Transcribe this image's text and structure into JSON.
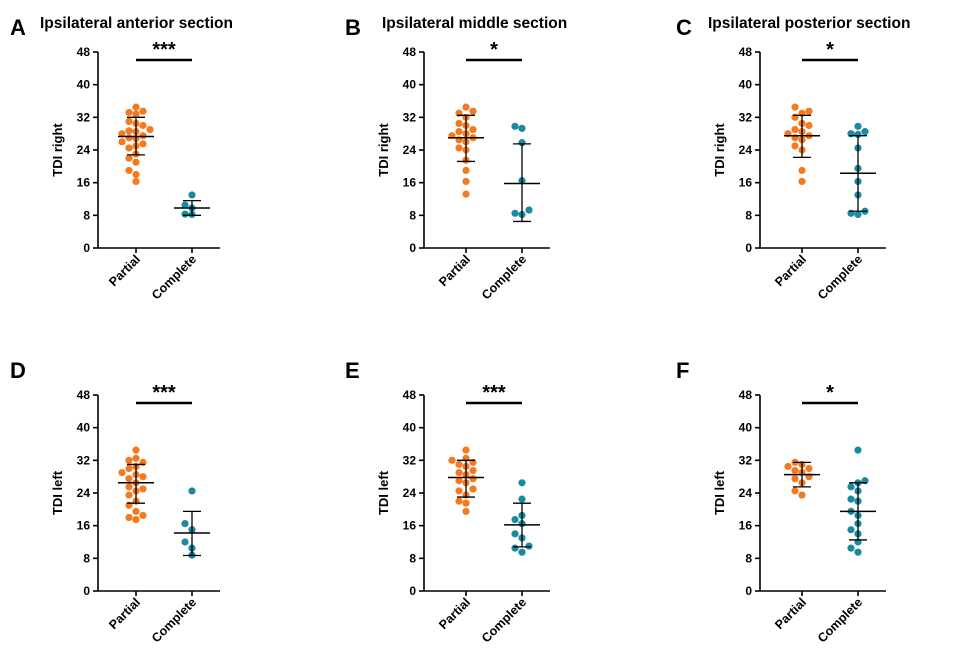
{
  "colors": {
    "partial": "#F47A1F",
    "complete": "#1B8A9E",
    "axis": "#000000"
  },
  "chart_data": [
    {
      "type": "scatter",
      "letter": "A",
      "title": "Ipsilateral anterior section",
      "ylabel": "TDI right",
      "categories": [
        "Partial",
        "Complete"
      ],
      "ylim": [
        0,
        48
      ],
      "yticks": [
        0,
        8,
        16,
        24,
        32,
        40,
        48
      ],
      "significance": "***",
      "series": [
        {
          "category": "Partial",
          "mean": 27.3,
          "sd_low": 22.8,
          "sd_high": 32.0,
          "values": [
            34.5,
            33.5,
            33.2,
            32.8,
            31.0,
            30.5,
            30.0,
            29.0,
            28.7,
            28.5,
            28.0,
            27.5,
            27.0,
            26.8,
            26.0,
            25.5,
            25.0,
            24.5,
            23.0,
            22.0,
            21.0,
            19.0,
            18.0,
            16.3
          ]
        },
        {
          "category": "Complete",
          "mean": 9.8,
          "sd_low": 8.0,
          "sd_high": 11.6,
          "values": [
            13.0,
            10.5,
            9.8,
            8.3,
            8.2
          ]
        }
      ]
    },
    {
      "type": "scatter",
      "letter": "B",
      "title": "Ipsilateral middle section",
      "ylabel": "TDI right",
      "categories": [
        "Partial",
        "Complete"
      ],
      "ylim": [
        0,
        48
      ],
      "yticks": [
        0,
        8,
        16,
        24,
        32,
        40,
        48
      ],
      "significance": "*",
      "series": [
        {
          "category": "Partial",
          "mean": 27.0,
          "sd_low": 21.2,
          "sd_high": 32.5,
          "values": [
            34.5,
            33.5,
            33.0,
            32.0,
            30.5,
            30.0,
            29.0,
            28.5,
            28.0,
            27.5,
            27.0,
            26.5,
            26.0,
            24.5,
            24.0,
            21.5,
            19.0,
            16.3,
            13.2
          ]
        },
        {
          "category": "Complete",
          "mean": 15.8,
          "sd_low": 6.5,
          "sd_high": 25.5,
          "values": [
            29.8,
            29.3,
            25.8,
            16.5,
            9.3,
            8.5,
            8.2
          ]
        }
      ]
    },
    {
      "type": "scatter",
      "letter": "C",
      "title": "Ipsilateral posterior section",
      "ylabel": "TDI right",
      "categories": [
        "Partial",
        "Complete"
      ],
      "ylim": [
        0,
        48
      ],
      "yticks": [
        0,
        8,
        16,
        24,
        32,
        40,
        48
      ],
      "significance": "*",
      "series": [
        {
          "category": "Partial",
          "mean": 27.5,
          "sd_low": 22.2,
          "sd_high": 32.5,
          "values": [
            34.5,
            33.5,
            33.0,
            32.0,
            30.5,
            30.0,
            29.0,
            28.5,
            28.0,
            27.5,
            27.0,
            26.5,
            25.0,
            24.0,
            19.0,
            16.3
          ]
        },
        {
          "category": "Complete",
          "mean": 18.3,
          "sd_low": 9.0,
          "sd_high": 27.5,
          "values": [
            29.8,
            28.5,
            28.0,
            27.8,
            24.5,
            19.5,
            16.3,
            13.0,
            9.0,
            8.5,
            8.2
          ]
        }
      ]
    },
    {
      "type": "scatter",
      "letter": "D",
      "title": "",
      "ylabel": "TDI left",
      "categories": [
        "Partial",
        "Complete"
      ],
      "ylim": [
        0,
        48
      ],
      "yticks": [
        0,
        8,
        16,
        24,
        32,
        40,
        48
      ],
      "significance": "***",
      "series": [
        {
          "category": "Partial",
          "mean": 26.5,
          "sd_low": 21.5,
          "sd_high": 31.0,
          "values": [
            34.5,
            32.5,
            32.0,
            31.5,
            30.5,
            30.0,
            29.0,
            28.5,
            28.0,
            27.5,
            26.5,
            25.5,
            25.0,
            24.5,
            23.5,
            22.0,
            21.0,
            19.5,
            18.5,
            18.0,
            17.5
          ]
        },
        {
          "category": "Complete",
          "mean": 14.2,
          "sd_low": 8.7,
          "sd_high": 19.5,
          "values": [
            24.5,
            16.5,
            15.0,
            12.0,
            10.5,
            8.8
          ]
        }
      ]
    },
    {
      "type": "scatter",
      "letter": "E",
      "title": "",
      "ylabel": "TDI left",
      "categories": [
        "Partial",
        "Complete"
      ],
      "ylim": [
        0,
        48
      ],
      "yticks": [
        0,
        8,
        16,
        24,
        32,
        40,
        48
      ],
      "significance": "***",
      "series": [
        {
          "category": "Partial",
          "mean": 27.8,
          "sd_low": 23.0,
          "sd_high": 32.0,
          "values": [
            34.5,
            32.5,
            32.0,
            31.5,
            31.0,
            30.5,
            29.5,
            29.0,
            28.5,
            27.5,
            27.0,
            26.5,
            25.0,
            24.5,
            23.5,
            22.0,
            21.5,
            19.5
          ]
        },
        {
          "category": "Complete",
          "mean": 16.2,
          "sd_low": 10.8,
          "sd_high": 21.5,
          "values": [
            26.5,
            22.5,
            18.5,
            17.5,
            16.5,
            14.0,
            13.0,
            11.0,
            10.5,
            9.5
          ]
        }
      ]
    },
    {
      "type": "scatter",
      "letter": "F",
      "title": "",
      "ylabel": "TDI left",
      "categories": [
        "Partial",
        "Complete"
      ],
      "ylim": [
        0,
        48
      ],
      "yticks": [
        0,
        8,
        16,
        24,
        32,
        40,
        48
      ],
      "significance": "*",
      "series": [
        {
          "category": "Partial",
          "mean": 28.5,
          "sd_low": 25.5,
          "sd_high": 31.5,
          "values": [
            31.5,
            31.0,
            30.5,
            30.0,
            29.5,
            29.0,
            28.0,
            27.5,
            26.5,
            24.5,
            23.5
          ]
        },
        {
          "category": "Complete",
          "mean": 19.5,
          "sd_low": 12.5,
          "sd_high": 26.5,
          "values": [
            34.5,
            27.0,
            26.5,
            25.5,
            24.5,
            22.5,
            22.0,
            19.5,
            18.5,
            16.5,
            15.0,
            14.0,
            12.0,
            10.5,
            9.5
          ]
        }
      ]
    }
  ]
}
